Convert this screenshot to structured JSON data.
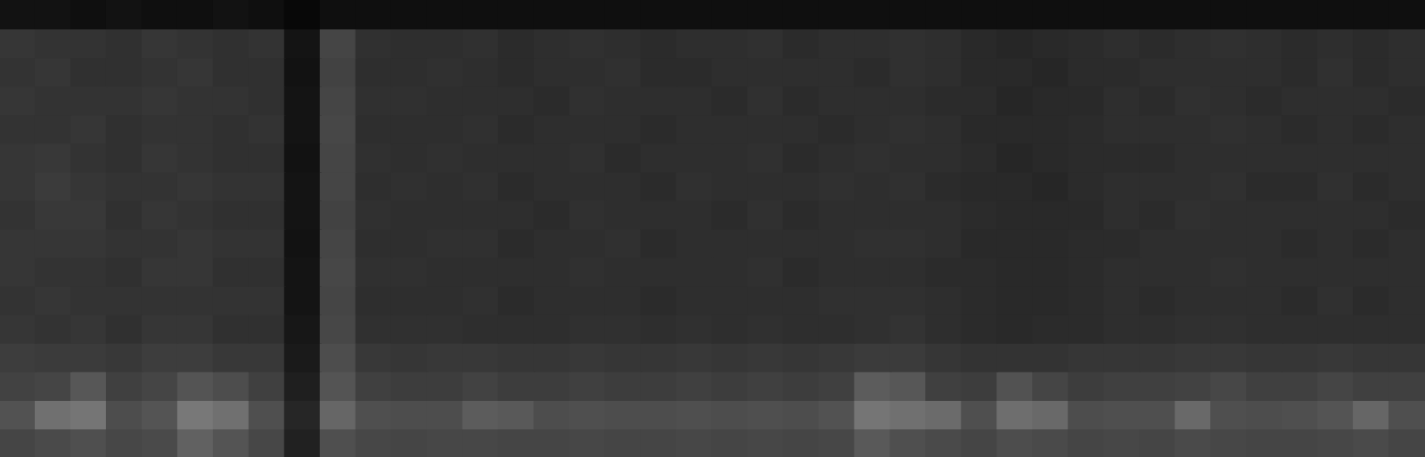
{
  "chart_data": {
    "type": "heatmap",
    "tick_labels": false,
    "zlim": [
      0,
      100
    ],
    "cells": [
      [
        7,
        7,
        6,
        7,
        6,
        6,
        7,
        6,
        3,
        6,
        6,
        6,
        6,
        6,
        6,
        6,
        6,
        6,
        6,
        6,
        6,
        6,
        6,
        6,
        6,
        6,
        6,
        6,
        6,
        6,
        6,
        6,
        6,
        6,
        6,
        6,
        6,
        6,
        6,
        6
      ],
      [
        21,
        20,
        20,
        19,
        21,
        20,
        19,
        20,
        8,
        27,
        19,
        18,
        18,
        19,
        17,
        18,
        19,
        18,
        17,
        18,
        18,
        19,
        17,
        18,
        18,
        19,
        18,
        16,
        15,
        16,
        17,
        18,
        17,
        18,
        19,
        18,
        17,
        18,
        17,
        18
      ],
      [
        20,
        21,
        19,
        19,
        20,
        21,
        19,
        19,
        7,
        26,
        18,
        18,
        19,
        18,
        17,
        18,
        18,
        19,
        17,
        17,
        18,
        18,
        18,
        18,
        17,
        19,
        18,
        16,
        16,
        15,
        17,
        17,
        18,
        18,
        18,
        18,
        17,
        19,
        17,
        18
      ],
      [
        21,
        20,
        20,
        20,
        21,
        20,
        20,
        19,
        8,
        27,
        19,
        19,
        18,
        18,
        18,
        17,
        19,
        18,
        18,
        18,
        17,
        19,
        17,
        18,
        18,
        18,
        17,
        17,
        15,
        16,
        16,
        18,
        17,
        19,
        18,
        17,
        18,
        18,
        18,
        17
      ],
      [
        20,
        20,
        21,
        19,
        20,
        20,
        19,
        20,
        8,
        28,
        18,
        18,
        18,
        19,
        17,
        18,
        18,
        18,
        17,
        18,
        18,
        18,
        18,
        17,
        18,
        19,
        18,
        16,
        16,
        16,
        17,
        18,
        18,
        18,
        19,
        18,
        17,
        18,
        17,
        18
      ],
      [
        21,
        22,
        20,
        19,
        21,
        20,
        19,
        19,
        7,
        27,
        19,
        18,
        19,
        18,
        18,
        18,
        19,
        17,
        18,
        18,
        18,
        19,
        17,
        18,
        19,
        18,
        18,
        17,
        15,
        16,
        17,
        17,
        17,
        18,
        18,
        18,
        18,
        18,
        18,
        18
      ],
      [
        21,
        23,
        21,
        20,
        20,
        21,
        20,
        20,
        8,
        27,
        18,
        19,
        18,
        19,
        17,
        18,
        18,
        18,
        17,
        19,
        18,
        18,
        18,
        19,
        18,
        19,
        17,
        16,
        16,
        15,
        17,
        18,
        18,
        18,
        19,
        17,
        17,
        19,
        17,
        18
      ],
      [
        20,
        22,
        22,
        19,
        21,
        20,
        19,
        19,
        8,
        26,
        19,
        18,
        18,
        18,
        18,
        17,
        19,
        18,
        18,
        18,
        17,
        19,
        17,
        18,
        18,
        18,
        18,
        17,
        16,
        16,
        16,
        18,
        17,
        19,
        18,
        18,
        18,
        18,
        18,
        17
      ],
      [
        21,
        21,
        21,
        20,
        20,
        21,
        20,
        20,
        7,
        27,
        18,
        18,
        19,
        19,
        17,
        18,
        18,
        19,
        17,
        18,
        18,
        18,
        18,
        18,
        19,
        19,
        18,
        16,
        16,
        16,
        17,
        17,
        18,
        18,
        18,
        18,
        17,
        18,
        17,
        18
      ],
      [
        21,
        20,
        20,
        19,
        21,
        21,
        19,
        19,
        8,
        28,
        19,
        19,
        18,
        18,
        18,
        18,
        19,
        18,
        18,
        18,
        18,
        19,
        17,
        18,
        18,
        18,
        17,
        17,
        16,
        16,
        17,
        18,
        18,
        18,
        19,
        18,
        18,
        18,
        18,
        18
      ],
      [
        20,
        21,
        20,
        20,
        20,
        20,
        20,
        20,
        8,
        27,
        18,
        18,
        18,
        19,
        17,
        18,
        18,
        18,
        17,
        18,
        18,
        18,
        18,
        19,
        19,
        19,
        18,
        17,
        16,
        16,
        17,
        18,
        17,
        18,
        18,
        18,
        17,
        19,
        17,
        18
      ],
      [
        21,
        20,
        21,
        19,
        21,
        21,
        19,
        19,
        9,
        28,
        19,
        19,
        19,
        18,
        18,
        18,
        19,
        19,
        18,
        19,
        18,
        19,
        18,
        18,
        19,
        20,
        18,
        17,
        16,
        17,
        17,
        18,
        18,
        19,
        19,
        18,
        18,
        18,
        18,
        18
      ],
      [
        24,
        23,
        23,
        22,
        24,
        24,
        22,
        22,
        10,
        30,
        22,
        21,
        22,
        22,
        21,
        21,
        22,
        21,
        21,
        22,
        21,
        22,
        21,
        22,
        23,
        23,
        21,
        20,
        20,
        20,
        21,
        21,
        21,
        22,
        22,
        21,
        21,
        22,
        21,
        21
      ],
      [
        26,
        27,
        34,
        25,
        27,
        33,
        30,
        25,
        12,
        33,
        25,
        24,
        24,
        26,
        24,
        24,
        25,
        24,
        24,
        25,
        24,
        25,
        24,
        25,
        36,
        34,
        25,
        24,
        32,
        27,
        24,
        25,
        25,
        26,
        28,
        25,
        25,
        27,
        25,
        25
      ],
      [
        32,
        44,
        46,
        30,
        33,
        47,
        44,
        31,
        15,
        40,
        31,
        30,
        30,
        36,
        35,
        30,
        31,
        30,
        30,
        31,
        30,
        31,
        30,
        32,
        46,
        44,
        42,
        31,
        43,
        41,
        30,
        31,
        31,
        41,
        31,
        30,
        31,
        33,
        40,
        31
      ],
      [
        27,
        29,
        31,
        28,
        29,
        38,
        33,
        28,
        13,
        31,
        28,
        27,
        28,
        28,
        27,
        27,
        28,
        27,
        27,
        28,
        27,
        28,
        27,
        28,
        35,
        31,
        29,
        27,
        30,
        29,
        27,
        28,
        27,
        29,
        28,
        27,
        27,
        28,
        29,
        27
      ]
    ]
  }
}
